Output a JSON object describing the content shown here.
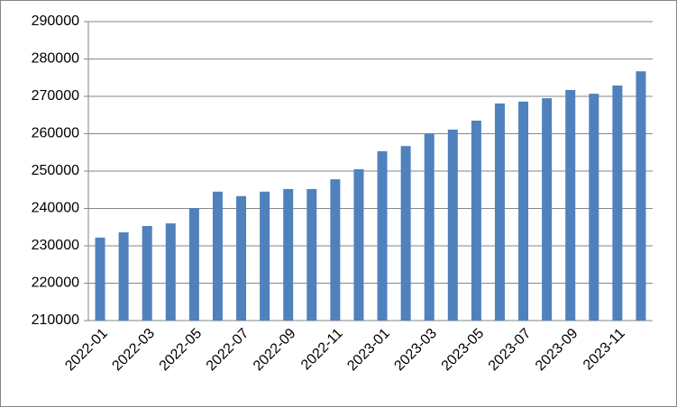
{
  "chart_data": {
    "type": "bar",
    "categories": [
      "2022-01",
      null,
      "2022-03",
      null,
      "2022-05",
      null,
      "2022-07",
      null,
      "2022-09",
      null,
      "2022-11",
      null,
      "2023-01",
      null,
      "2023-03",
      null,
      "2023-05",
      null,
      "2023-07",
      null,
      "2023-09",
      null,
      "2023-11",
      null
    ],
    "values": [
      232200,
      233600,
      235300,
      236000,
      240100,
      244500,
      243300,
      244500,
      245200,
      245200,
      247800,
      250500,
      255300,
      256700,
      260100,
      261100,
      263500,
      268100,
      268600,
      269500,
      271700,
      270700,
      272900,
      276700
    ],
    "color": "#4f81bd",
    "ylim": [
      210000,
      290000
    ],
    "yticks": [
      210000,
      220000,
      230000,
      240000,
      250000,
      260000,
      270000,
      280000,
      290000
    ],
    "grid": true
  }
}
